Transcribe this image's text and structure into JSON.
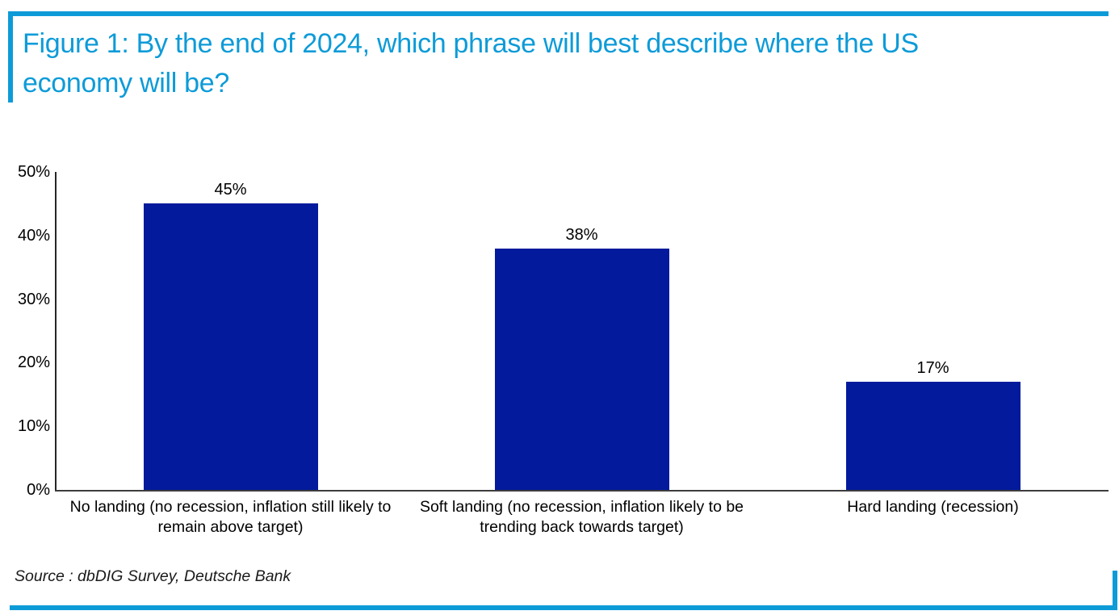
{
  "figure": {
    "title_line1": "Figure 1: By the end of 2024, which phrase will best describe where the US",
    "title_line2": "economy will be?",
    "source": "Source : dbDIG Survey, Deutsche Bank"
  },
  "colors": {
    "accent_blue": "#0d9bd8",
    "bar_navy": "#021a9b",
    "axis_line": "#3d3d3d",
    "text": "#000000"
  },
  "chart_data": {
    "type": "bar",
    "title": "Figure 1: By the end of 2024, which phrase will best describe where the US economy will be?",
    "categories": [
      "No landing (no recession, inflation still likely to remain above target)",
      "Soft landing (no recession, inflation likely to be trending back towards target)",
      "Hard landing (recession)"
    ],
    "values": [
      45,
      38,
      17
    ],
    "value_labels": [
      "45%",
      "38%",
      "17%"
    ],
    "y_ticks": [
      "50%",
      "40%",
      "30%",
      "20%",
      "10%",
      "0%"
    ],
    "y_tick_values": [
      50,
      40,
      30,
      20,
      10,
      0
    ],
    "ylim": [
      0,
      50
    ],
    "xlabel": "",
    "ylabel": "",
    "grid": false,
    "legend": "none",
    "bar_color": "#021a9b"
  }
}
